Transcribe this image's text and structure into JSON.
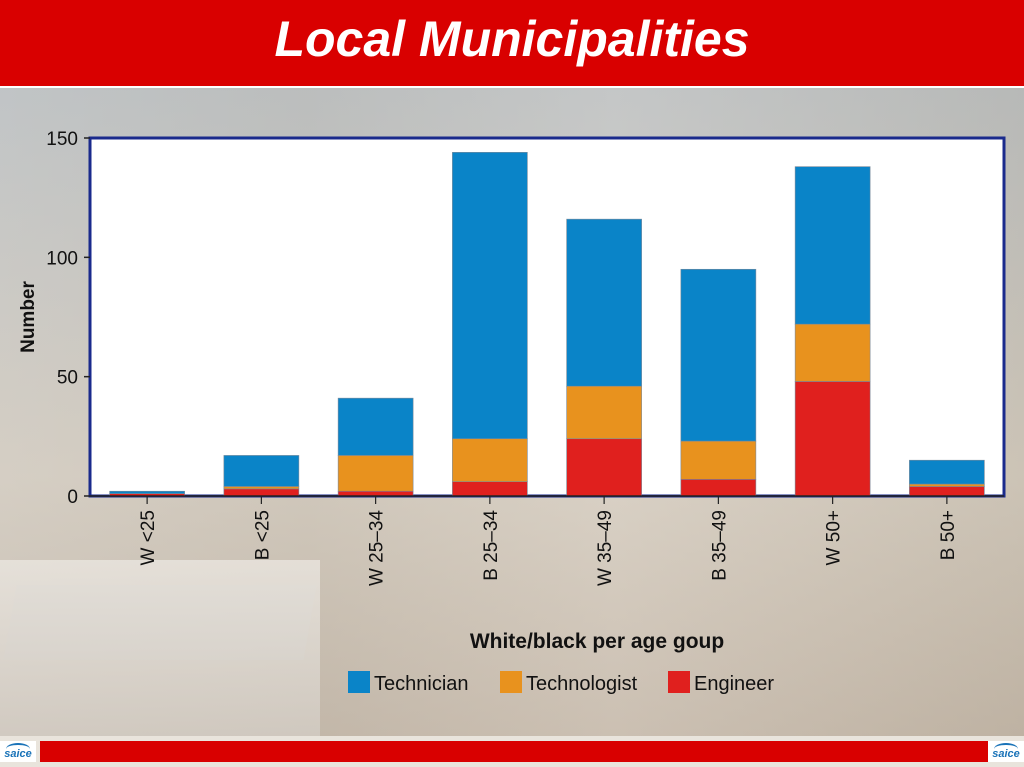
{
  "title": "Local Municipalities",
  "logo_text": "saice",
  "colors": {
    "title_bar": "#d90000",
    "technician": "#0a84c8",
    "technologist": "#e8921e",
    "engineer": "#e0201e",
    "plot_border": "#1a2a8c"
  },
  "chart_data": {
    "type": "bar",
    "stacked": true,
    "categories": [
      "W <25",
      "B <25",
      "W 25–34",
      "B 25–34",
      "W 35–49",
      "B 35–49",
      "W 50+",
      "B 50+"
    ],
    "series": [
      {
        "name": "Engineer",
        "color": "#e0201e",
        "values": [
          1,
          3,
          2,
          6,
          24,
          7,
          48,
          4
        ]
      },
      {
        "name": "Technologist",
        "color": "#e8921e",
        "values": [
          0,
          1,
          15,
          18,
          22,
          16,
          24,
          1
        ]
      },
      {
        "name": "Technician",
        "color": "#0a84c8",
        "values": [
          1,
          13,
          24,
          120,
          70,
          72,
          66,
          10
        ]
      }
    ],
    "legend_order": [
      "Technician",
      "Technologist",
      "Engineer"
    ],
    "xlabel": "White/black per age goup",
    "ylabel": "Number",
    "ylim": [
      0,
      150
    ],
    "yticks": [
      0,
      50,
      100,
      150
    ],
    "grid": false,
    "legend_position": "bottom"
  }
}
